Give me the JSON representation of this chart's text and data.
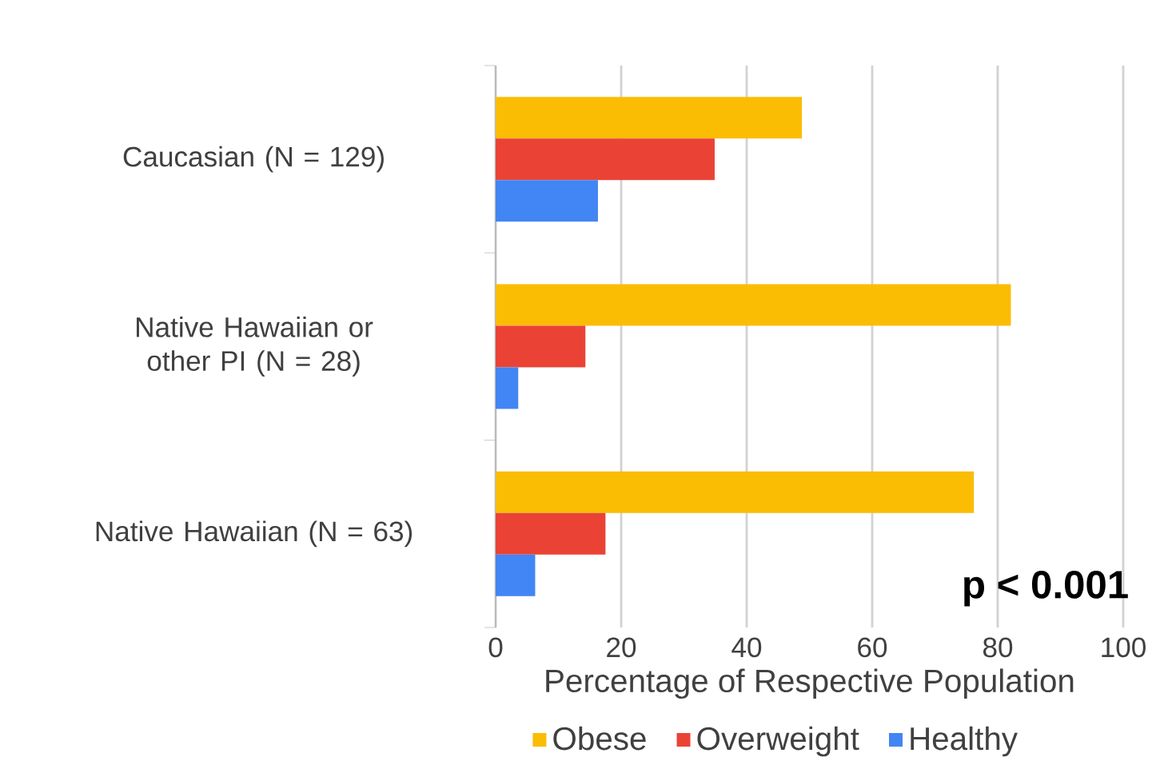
{
  "chart_data": {
    "type": "bar",
    "orientation": "horizontal",
    "categories": [
      "Caucasian (N = 129)",
      "Native Hawaiian or other PI (N = 28)",
      "Native Hawaiian  (N = 63)"
    ],
    "series": [
      {
        "name": "Obese",
        "color": "#fbbc04",
        "values": [
          48.8,
          82.1,
          76.2
        ]
      },
      {
        "name": "Overweight",
        "color": "#ea4335",
        "values": [
          34.9,
          14.3,
          17.5
        ]
      },
      {
        "name": "Healthy",
        "color": "#4285f4",
        "values": [
          16.3,
          3.6,
          6.3
        ]
      }
    ],
    "xlabel": "Percentage of Respective Population",
    "xlim": [
      0,
      100
    ],
    "xticks": [
      0,
      20,
      40,
      60,
      80,
      100
    ],
    "grid": "x",
    "legend": "bottom",
    "annotations": [
      "p < 0.001"
    ]
  }
}
